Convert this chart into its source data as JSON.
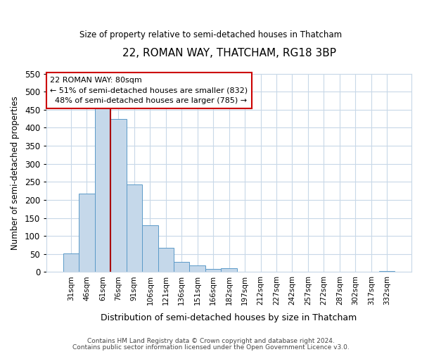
{
  "title1": "22, ROMAN WAY, THATCHAM, RG18 3BP",
  "title2": "Size of property relative to semi-detached houses in Thatcham",
  "xlabel": "Distribution of semi-detached houses by size in Thatcham",
  "ylabel": "Number of semi-detached properties",
  "categories": [
    "31sqm",
    "46sqm",
    "61sqm",
    "76sqm",
    "91sqm",
    "106sqm",
    "121sqm",
    "136sqm",
    "151sqm",
    "166sqm",
    "182sqm",
    "197sqm",
    "212sqm",
    "227sqm",
    "242sqm",
    "257sqm",
    "272sqm",
    "287sqm",
    "302sqm",
    "317sqm",
    "332sqm"
  ],
  "values": [
    52,
    218,
    460,
    425,
    243,
    130,
    68,
    29,
    18,
    9,
    10,
    0,
    0,
    0,
    0,
    0,
    0,
    0,
    0,
    0,
    2
  ],
  "bar_color": "#c5d8ea",
  "bar_edge_color": "#5b9ac8",
  "marker_label": "22 ROMAN WAY: 80sqm",
  "smaller_pct": 51,
  "smaller_count": 832,
  "larger_pct": 48,
  "larger_count": 785,
  "vline_color": "#aa0000",
  "vline_x": 3.0,
  "ylim": [
    0,
    550
  ],
  "yticks": [
    0,
    50,
    100,
    150,
    200,
    250,
    300,
    350,
    400,
    450,
    500,
    550
  ],
  "annotation_box_edge": "#cc0000",
  "grid_color": "#c8d8e8",
  "footer1": "Contains HM Land Registry data © Crown copyright and database right 2024.",
  "footer2": "Contains public sector information licensed under the Open Government Licence v3.0."
}
